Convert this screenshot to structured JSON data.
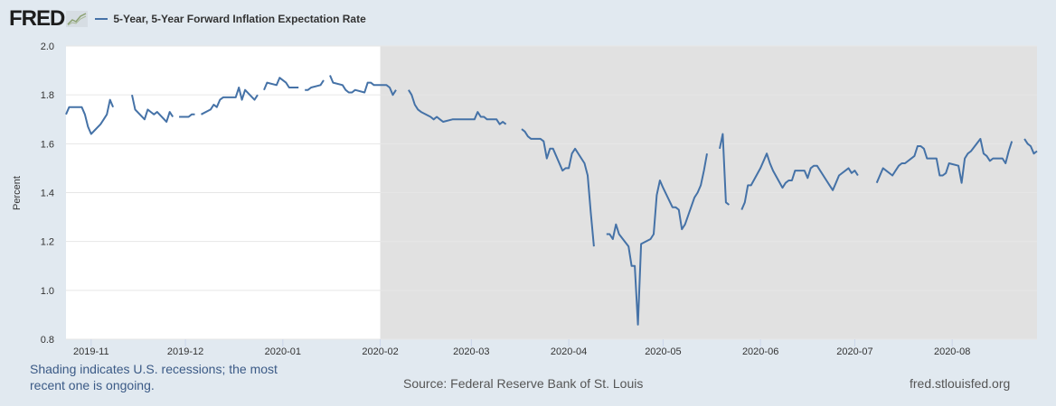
{
  "header": {
    "logo_text": "FRED",
    "logo_icon": "chart-line-icon",
    "legend_label": "5-Year, 5-Year Forward Inflation Expectation Rate"
  },
  "footer": {
    "shading_note": "Shading indicates U.S. recessions; the most recent one is ongoing.",
    "source": "Source: Federal Reserve Bank of St. Louis",
    "site": "fred.stlouisfed.org"
  },
  "colors": {
    "series": "#4572a7",
    "recession": "#e1e1e1",
    "plot_bg": "#ffffff",
    "page_bg": "#e1e9f0"
  },
  "chart_data": {
    "type": "line",
    "title": "5-Year, 5-Year Forward Inflation Expectation Rate",
    "xlabel": "",
    "ylabel": "Percent",
    "ylim": [
      0.8,
      2.0
    ],
    "yticks": [
      "0.8",
      "1.0",
      "1.2",
      "1.4",
      "1.6",
      "1.8",
      "2.0"
    ],
    "xlim": [
      "2019-10-24",
      "2020-08-28"
    ],
    "xticks": [
      "2019-11",
      "2019-12",
      "2020-01",
      "2020-02",
      "2020-03",
      "2020-04",
      "2020-05",
      "2020-06",
      "2020-07",
      "2020-08"
    ],
    "grid": true,
    "legend": "top-left",
    "recessions": [
      {
        "start": "2020-02-01",
        "end": "2020-08-28",
        "label": "ongoing"
      }
    ],
    "series": [
      {
        "name": "5-Year, 5-Year Forward Inflation Expectation Rate",
        "points": [
          [
            "2019-10-24",
            1.72
          ],
          [
            "2019-10-25",
            1.75
          ],
          [
            "2019-10-28",
            1.75
          ],
          [
            "2019-10-29",
            1.75
          ],
          [
            "2019-10-30",
            1.72
          ],
          [
            "2019-10-31",
            1.67
          ],
          [
            "2019-11-01",
            1.64
          ],
          [
            "2019-11-04",
            1.68
          ],
          [
            "2019-11-05",
            1.7
          ],
          [
            "2019-11-06",
            1.72
          ],
          [
            "2019-11-07",
            1.78
          ],
          [
            "2019-11-08",
            1.75
          ],
          [
            "2019-11-11",
            null
          ],
          [
            "2019-11-12",
            1.79
          ],
          [
            "2019-11-13",
            null
          ],
          [
            "2019-11-14",
            1.8
          ],
          [
            "2019-11-15",
            1.74
          ],
          [
            "2019-11-18",
            1.7
          ],
          [
            "2019-11-19",
            1.74
          ],
          [
            "2019-11-20",
            1.73
          ],
          [
            "2019-11-21",
            1.72
          ],
          [
            "2019-11-22",
            1.73
          ],
          [
            "2019-11-25",
            1.69
          ],
          [
            "2019-11-26",
            1.73
          ],
          [
            "2019-11-27",
            1.71
          ],
          [
            "2019-11-28",
            null
          ],
          [
            "2019-11-29",
            1.71
          ],
          [
            "2019-12-02",
            1.71
          ],
          [
            "2019-12-03",
            1.72
          ],
          [
            "2019-12-04",
            1.72
          ],
          [
            "2019-12-05",
            null
          ],
          [
            "2019-12-06",
            1.72
          ],
          [
            "2019-12-09",
            1.74
          ],
          [
            "2019-12-10",
            1.76
          ],
          [
            "2019-12-11",
            1.75
          ],
          [
            "2019-12-12",
            1.78
          ],
          [
            "2019-12-13",
            1.79
          ],
          [
            "2019-12-16",
            1.79
          ],
          [
            "2019-12-17",
            1.79
          ],
          [
            "2019-12-18",
            1.83
          ],
          [
            "2019-12-19",
            1.78
          ],
          [
            "2019-12-20",
            1.82
          ],
          [
            "2019-12-23",
            1.78
          ],
          [
            "2019-12-24",
            1.8
          ],
          [
            "2019-12-25",
            null
          ],
          [
            "2019-12-26",
            1.82
          ],
          [
            "2019-12-27",
            1.85
          ],
          [
            "2019-12-30",
            1.84
          ],
          [
            "2019-12-31",
            1.87
          ],
          [
            "2020-01-02",
            1.85
          ],
          [
            "2020-01-03",
            1.83
          ],
          [
            "2020-01-06",
            1.83
          ],
          [
            "2020-01-07",
            null
          ],
          [
            "2020-01-08",
            1.82
          ],
          [
            "2020-01-09",
            1.82
          ],
          [
            "2020-01-10",
            1.83
          ],
          [
            "2020-01-13",
            1.84
          ],
          [
            "2020-01-14",
            1.86
          ],
          [
            "2020-01-15",
            null
          ],
          [
            "2020-01-16",
            1.88
          ],
          [
            "2020-01-17",
            1.85
          ],
          [
            "2020-01-20",
            1.84
          ],
          [
            "2020-01-21",
            1.82
          ],
          [
            "2020-01-22",
            1.81
          ],
          [
            "2020-01-23",
            1.81
          ],
          [
            "2020-01-24",
            1.82
          ],
          [
            "2020-01-27",
            1.81
          ],
          [
            "2020-01-28",
            1.85
          ],
          [
            "2020-01-29",
            1.85
          ],
          [
            "2020-01-30",
            1.84
          ],
          [
            "2020-01-31",
            1.84
          ],
          [
            "2020-02-03",
            1.84
          ],
          [
            "2020-02-04",
            1.83
          ],
          [
            "2020-02-05",
            1.8
          ],
          [
            "2020-02-06",
            1.82
          ],
          [
            "2020-02-07",
            null
          ],
          [
            "2020-02-10",
            1.82
          ],
          [
            "2020-02-11",
            1.8
          ],
          [
            "2020-02-12",
            1.76
          ],
          [
            "2020-02-13",
            1.74
          ],
          [
            "2020-02-14",
            1.73
          ],
          [
            "2020-02-17",
            1.71
          ],
          [
            "2020-02-18",
            1.7
          ],
          [
            "2020-02-19",
            1.71
          ],
          [
            "2020-02-20",
            1.7
          ],
          [
            "2020-02-21",
            1.69
          ],
          [
            "2020-02-24",
            1.7
          ],
          [
            "2020-02-25",
            1.7
          ],
          [
            "2020-02-26",
            1.7
          ],
          [
            "2020-02-27",
            1.7
          ],
          [
            "2020-02-28",
            1.7
          ],
          [
            "2020-03-02",
            1.7
          ],
          [
            "2020-03-03",
            1.73
          ],
          [
            "2020-03-04",
            1.71
          ],
          [
            "2020-03-05",
            1.71
          ],
          [
            "2020-03-06",
            1.7
          ],
          [
            "2020-03-09",
            1.7
          ],
          [
            "2020-03-10",
            1.68
          ],
          [
            "2020-03-11",
            1.69
          ],
          [
            "2020-03-12",
            1.68
          ],
          [
            "2020-03-13",
            null
          ],
          [
            "2020-03-16",
            null
          ],
          [
            "2020-03-17",
            1.66
          ],
          [
            "2020-03-18",
            1.65
          ],
          [
            "2020-03-19",
            1.63
          ],
          [
            "2020-03-20",
            1.62
          ],
          [
            "2020-03-23",
            1.62
          ],
          [
            "2020-03-24",
            1.61
          ],
          [
            "2020-03-25",
            1.54
          ],
          [
            "2020-03-26",
            1.58
          ],
          [
            "2020-03-27",
            1.58
          ],
          [
            "2020-03-30",
            1.49
          ],
          [
            "2020-03-31",
            1.5
          ],
          [
            "2020-04-01",
            1.5
          ],
          [
            "2020-04-02",
            1.56
          ],
          [
            "2020-04-03",
            1.58
          ],
          [
            "2020-04-06",
            1.52
          ],
          [
            "2020-04-07",
            1.47
          ],
          [
            "2020-04-08",
            1.32
          ],
          [
            "2020-04-09",
            1.18
          ],
          [
            "2020-04-10",
            null
          ],
          [
            "2020-04-13",
            1.23
          ],
          [
            "2020-04-14",
            1.23
          ],
          [
            "2020-04-15",
            1.21
          ],
          [
            "2020-04-16",
            1.27
          ],
          [
            "2020-04-17",
            1.23
          ],
          [
            "2020-04-20",
            1.18
          ],
          [
            "2020-04-21",
            1.1
          ],
          [
            "2020-04-22",
            1.1
          ],
          [
            "2020-04-23",
            0.86
          ],
          [
            "2020-04-24",
            1.19
          ],
          [
            "2020-04-27",
            1.21
          ],
          [
            "2020-04-28",
            1.23
          ],
          [
            "2020-04-29",
            1.39
          ],
          [
            "2020-04-30",
            1.45
          ],
          [
            "2020-05-01",
            1.42
          ],
          [
            "2020-05-04",
            1.34
          ],
          [
            "2020-05-05",
            1.34
          ],
          [
            "2020-05-06",
            1.33
          ],
          [
            "2020-05-07",
            1.25
          ],
          [
            "2020-05-08",
            1.27
          ],
          [
            "2020-05-11",
            1.38
          ],
          [
            "2020-05-12",
            1.4
          ],
          [
            "2020-05-13",
            1.43
          ],
          [
            "2020-05-14",
            1.49
          ],
          [
            "2020-05-15",
            1.56
          ],
          [
            "2020-05-18",
            null
          ],
          [
            "2020-05-19",
            1.58
          ],
          [
            "2020-05-20",
            1.64
          ],
          [
            "2020-05-21",
            1.36
          ],
          [
            "2020-05-22",
            1.35
          ],
          [
            "2020-05-25",
            null
          ],
          [
            "2020-05-26",
            1.33
          ],
          [
            "2020-05-27",
            1.36
          ],
          [
            "2020-05-28",
            1.43
          ],
          [
            "2020-05-29",
            1.43
          ],
          [
            "2020-06-01",
            1.5
          ],
          [
            "2020-06-02",
            1.53
          ],
          [
            "2020-06-03",
            1.56
          ],
          [
            "2020-06-04",
            1.52
          ],
          [
            "2020-06-05",
            1.49
          ],
          [
            "2020-06-08",
            1.42
          ],
          [
            "2020-06-09",
            1.44
          ],
          [
            "2020-06-10",
            1.45
          ],
          [
            "2020-06-11",
            1.45
          ],
          [
            "2020-06-12",
            1.49
          ],
          [
            "2020-06-15",
            1.49
          ],
          [
            "2020-06-16",
            1.46
          ],
          [
            "2020-06-17",
            1.5
          ],
          [
            "2020-06-18",
            1.51
          ],
          [
            "2020-06-19",
            1.51
          ],
          [
            "2020-06-22",
            1.45
          ],
          [
            "2020-06-23",
            1.43
          ],
          [
            "2020-06-24",
            1.41
          ],
          [
            "2020-06-25",
            1.44
          ],
          [
            "2020-06-26",
            1.47
          ],
          [
            "2020-06-29",
            1.5
          ],
          [
            "2020-06-30",
            1.48
          ],
          [
            "2020-07-01",
            1.49
          ],
          [
            "2020-07-02",
            1.47
          ],
          [
            "2020-07-03",
            null
          ],
          [
            "2020-07-06",
            1.44
          ],
          [
            "2020-07-07",
            null
          ],
          [
            "2020-07-08",
            1.44
          ],
          [
            "2020-07-09",
            1.47
          ],
          [
            "2020-07-10",
            1.5
          ],
          [
            "2020-07-13",
            1.47
          ],
          [
            "2020-07-14",
            1.49
          ],
          [
            "2020-07-15",
            1.51
          ],
          [
            "2020-07-16",
            1.52
          ],
          [
            "2020-07-17",
            1.52
          ],
          [
            "2020-07-20",
            1.55
          ],
          [
            "2020-07-21",
            1.59
          ],
          [
            "2020-07-22",
            1.59
          ],
          [
            "2020-07-23",
            1.58
          ],
          [
            "2020-07-24",
            1.54
          ],
          [
            "2020-07-27",
            1.54
          ],
          [
            "2020-07-28",
            1.47
          ],
          [
            "2020-07-29",
            1.47
          ],
          [
            "2020-07-30",
            1.48
          ],
          [
            "2020-07-31",
            1.52
          ],
          [
            "2020-08-03",
            1.51
          ],
          [
            "2020-08-04",
            1.44
          ],
          [
            "2020-08-05",
            1.54
          ],
          [
            "2020-08-06",
            1.56
          ],
          [
            "2020-08-07",
            1.57
          ],
          [
            "2020-08-10",
            1.62
          ],
          [
            "2020-08-11",
            1.56
          ],
          [
            "2020-08-12",
            1.55
          ],
          [
            "2020-08-13",
            1.53
          ],
          [
            "2020-08-14",
            1.54
          ],
          [
            "2020-08-17",
            1.54
          ],
          [
            "2020-08-18",
            1.52
          ],
          [
            "2020-08-19",
            1.57
          ],
          [
            "2020-08-20",
            1.61
          ],
          [
            "2020-08-21",
            null
          ],
          [
            "2020-08-24",
            1.62
          ],
          [
            "2020-08-25",
            1.6
          ],
          [
            "2020-08-26",
            1.59
          ],
          [
            "2020-08-27",
            1.56
          ],
          [
            "2020-08-28",
            1.57
          ]
        ]
      }
    ]
  }
}
